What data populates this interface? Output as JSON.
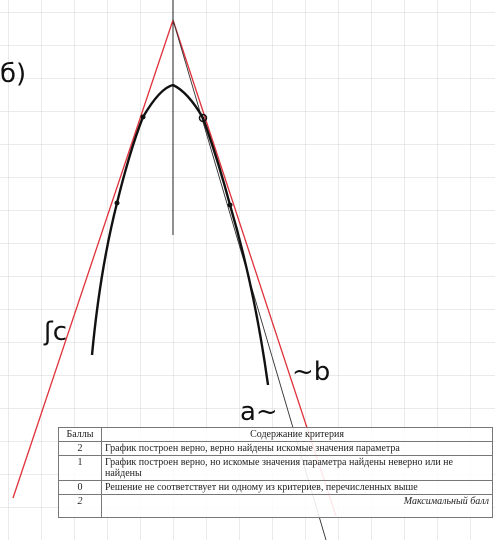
{
  "handwriting": {
    "part_label": "б)",
    "line_c": "ʃc",
    "line_b": "~b",
    "line_a": "a~"
  },
  "table": {
    "header": [
      "Баллы",
      "Содержание критерия"
    ],
    "rows": [
      [
        "2",
        "График построен верно, верно найдены искомые значения параметра"
      ],
      [
        "1",
        "График построен верно, но искомые значения параметра найдены неверно или не найдены"
      ],
      [
        "0",
        "Решение не соответствует ни одному из критериев, перечисленных выше"
      ],
      [
        "2",
        "Максимальный балл"
      ]
    ]
  }
}
